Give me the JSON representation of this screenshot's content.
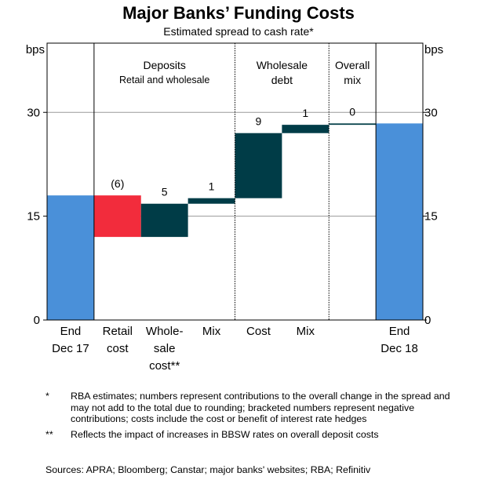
{
  "chart_data": {
    "type": "waterfall",
    "title": "Major Banks’ Funding Costs",
    "subtitle": "Estimated spread to cash rate*",
    "ylabel_left": "bps",
    "ylabel_right": "bps",
    "ylim": [
      0,
      40
    ],
    "yticks": [
      0,
      15,
      30
    ],
    "grid": true,
    "panels": [
      {
        "title": "Deposits",
        "subtitle": "Retail and wholesale",
        "span": [
          1,
          3
        ]
      },
      {
        "title": "Wholesale debt",
        "span": [
          4,
          5
        ]
      },
      {
        "title": "Overall mix",
        "span": [
          6,
          6
        ]
      }
    ],
    "categories": [
      "End Dec 17",
      "Retail cost",
      "Whole-sale cost**",
      "Mix",
      "Cost",
      "Mix",
      "",
      "End Dec 18"
    ],
    "category_lines": [
      [
        "End",
        "Dec 17"
      ],
      [
        "Retail",
        "cost"
      ],
      [
        "Whole-",
        "sale",
        "cost**"
      ],
      [
        "Mix"
      ],
      [
        "Cost"
      ],
      [
        "Mix"
      ],
      [],
      [
        "End",
        "Dec 18"
      ]
    ],
    "bars": [
      {
        "kind": "total",
        "start": 0,
        "end": 18.0,
        "label": "",
        "color": "#4A90D9"
      },
      {
        "kind": "delta",
        "start": 18.0,
        "end": 12.0,
        "label": "(6)",
        "color": "#F22C3C"
      },
      {
        "kind": "delta",
        "start": 12.0,
        "end": 16.8,
        "label": "5",
        "color": "#003C47"
      },
      {
        "kind": "delta",
        "start": 16.8,
        "end": 17.6,
        "label": "1",
        "color": "#003C47"
      },
      {
        "kind": "delta",
        "start": 17.6,
        "end": 27.0,
        "label": "9",
        "color": "#003C47"
      },
      {
        "kind": "delta",
        "start": 27.0,
        "end": 28.2,
        "label": "1",
        "color": "#003C47"
      },
      {
        "kind": "delta",
        "start": 28.2,
        "end": 28.4,
        "label": "0",
        "color": "#003C47"
      },
      {
        "kind": "total",
        "start": 0,
        "end": 28.4,
        "label": "",
        "color": "#4A90D9"
      }
    ]
  },
  "notes": [
    {
      "mark": "*",
      "text": "RBA estimates; numbers represent contributions to the overall change in the spread and may not add to the total due to rounding; bracketed numbers represent negative contributions; costs include the cost or benefit of interest rate hedges"
    },
    {
      "mark": "**",
      "text": "Reflects the impact of increases in BBSW rates on overall deposit costs"
    }
  ],
  "sources": "Sources:   APRA; Bloomberg; Canstar; major banks' websites; RBA; Refinitiv"
}
